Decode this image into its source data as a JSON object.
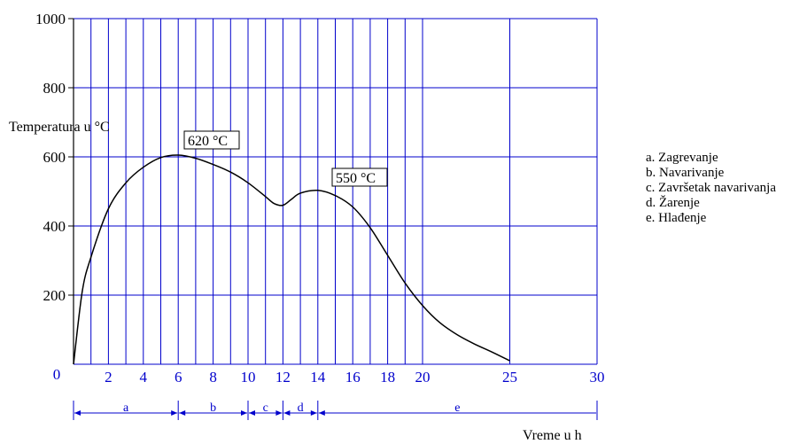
{
  "chart_data": {
    "type": "line",
    "title": "",
    "ylabel": "Temperatura u °C",
    "xlabel": "Vreme u h",
    "xlim": [
      0,
      30
    ],
    "ylim": [
      0,
      1000
    ],
    "y_ticks": [
      "1000",
      "800",
      "600",
      "400",
      "200"
    ],
    "x_ticks": [
      {
        "value": 0,
        "label": "0"
      },
      {
        "value": 2,
        "label": "2"
      },
      {
        "value": 4,
        "label": "4"
      },
      {
        "value": 6,
        "label": "6"
      },
      {
        "value": 8,
        "label": "8"
      },
      {
        "value": 10,
        "label": "10"
      },
      {
        "value": 12,
        "label": "12"
      },
      {
        "value": 14,
        "label": "14"
      },
      {
        "value": 16,
        "label": "16"
      },
      {
        "value": 18,
        "label": "18"
      },
      {
        "value": 20,
        "label": "20"
      },
      {
        "value": 25,
        "label": "25"
      },
      {
        "value": 30,
        "label": "30"
      }
    ],
    "grid": true,
    "series": [
      {
        "x": [
          0,
          0.5,
          1,
          2,
          3,
          4,
          5,
          6,
          7,
          8,
          9,
          10,
          11,
          11.5,
          12,
          12.5,
          13,
          14,
          15,
          16,
          17,
          18,
          19,
          20,
          21,
          22,
          23,
          24,
          25
        ],
        "y": [
          0,
          210,
          310,
          450,
          525,
          570,
          598,
          605,
          596,
          578,
          556,
          525,
          485,
          465,
          460,
          478,
          495,
          503,
          488,
          455,
          395,
          315,
          235,
          170,
          120,
          85,
          58,
          35,
          10
        ]
      }
    ],
    "annotations": [
      {
        "text": "620 °C",
        "x": 6,
        "y": 620
      },
      {
        "text": "550 °C",
        "x": 15,
        "y": 550
      }
    ],
    "phases": [
      {
        "label": "a",
        "start": 0,
        "end": 6
      },
      {
        "label": "b",
        "start": 6,
        "end": 10
      },
      {
        "label": "c",
        "start": 10,
        "end": 12
      },
      {
        "label": "d",
        "start": 12,
        "end": 14
      },
      {
        "label": "e",
        "start": 14,
        "end": 30
      }
    ],
    "legend": [
      "a. Zagrevanje",
      "b. Navarivanje",
      "c. Završetak navarivanja",
      "d. Žarenje",
      "e. Hlađenje"
    ]
  },
  "colors": {
    "grid": "#0000cc",
    "axis": "#000000",
    "curve": "#000000",
    "tick_x": "#0000cc",
    "phase": "#0000cc"
  }
}
